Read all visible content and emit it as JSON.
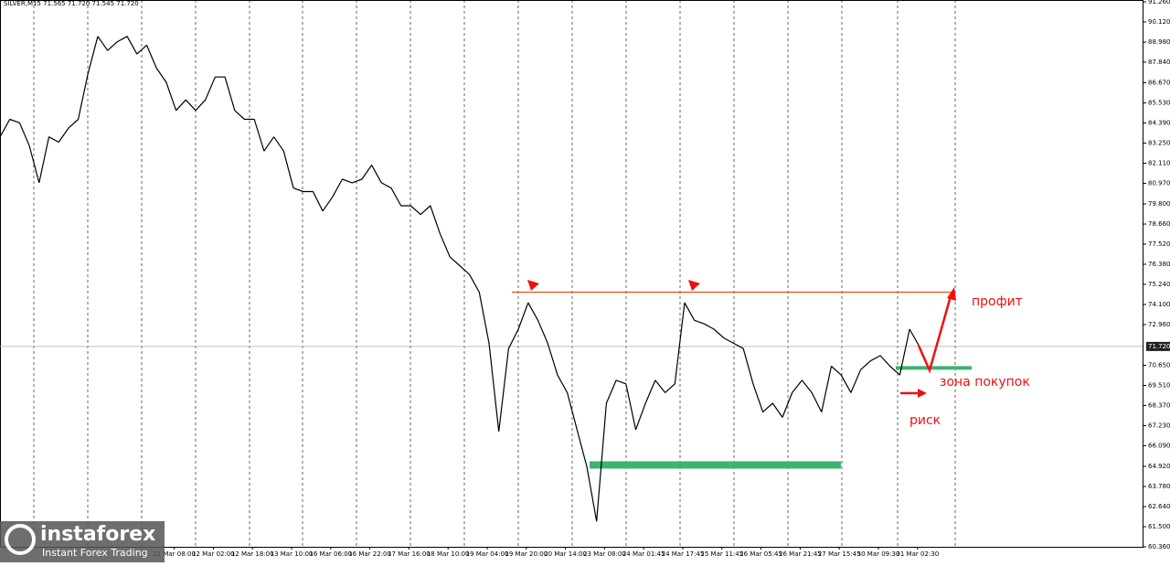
{
  "header": "SILVER,M15 71.565 71.720 71.545 71.720",
  "chart_data": {
    "type": "line",
    "color": "#000000",
    "categories": [
      null,
      null,
      null,
      null,
      null,
      null,
      null,
      null,
      null,
      null,
      null,
      null,
      null,
      null,
      null,
      null,
      null,
      null,
      "11 Mar 08:00",
      null,
      null,
      null,
      "12 Mar 02:00",
      null,
      null,
      null,
      "12 Mar 18:00",
      null,
      null,
      null,
      "13 Mar 10:00",
      null,
      null,
      null,
      "16 Mar 06:00",
      null,
      null,
      null,
      "16 Mar 22:00",
      null,
      null,
      null,
      "17 Mar 16:00",
      null,
      null,
      null,
      "18 Mar 10:00",
      null,
      null,
      null,
      "19 Mar 04:00",
      null,
      null,
      null,
      "19 Mar 20:00",
      null,
      null,
      null,
      "20 Mar 14:00",
      null,
      null,
      null,
      "23 Mar 08:00",
      null,
      null,
      null,
      "24 Mar 01:45",
      null,
      null,
      null,
      "24 Mar 17:45",
      null,
      null,
      null,
      "25 Mar 11:45",
      null,
      null,
      null,
      "26 Mar 05:45",
      null,
      null,
      null,
      "26 Mar 21:45",
      null,
      null,
      null,
      "27 Mar 15:45",
      null,
      null,
      null,
      "30 Mar 09:30",
      null,
      null,
      null,
      "31 Mar 02:30"
    ],
    "values": [
      83.6,
      84.6,
      84.4,
      83.1,
      81.0,
      83.6,
      83.3,
      84.1,
      84.6,
      87.2,
      89.3,
      88.5,
      89.0,
      89.3,
      88.3,
      88.8,
      87.5,
      86.7,
      85.1,
      85.7,
      85.1,
      85.7,
      87.0,
      87.0,
      85.1,
      84.6,
      84.6,
      82.8,
      83.6,
      82.8,
      80.7,
      80.5,
      80.5,
      79.4,
      80.2,
      81.2,
      81.0,
      81.2,
      82.0,
      81.0,
      80.7,
      79.7,
      79.7,
      79.2,
      79.7,
      78.1,
      76.8,
      76.3,
      75.8,
      74.8,
      71.9,
      66.9,
      71.6,
      72.7,
      74.2,
      73.2,
      71.9,
      70.1,
      69.1,
      67.0,
      64.9,
      61.8,
      68.5,
      69.8,
      69.6,
      67.0,
      68.5,
      69.8,
      69.1,
      69.6,
      74.2,
      73.2,
      73.0,
      72.7,
      72.2,
      71.9,
      71.6,
      69.6,
      68.0,
      68.5,
      67.7,
      69.1,
      69.8,
      69.1,
      68.0,
      70.6,
      70.1,
      69.1,
      70.4,
      70.9,
      71.2,
      70.6,
      70.1,
      72.7,
      71.72
    ],
    "ylim": [
      60.36,
      91.26
    ],
    "yticks": [
      {
        "value": 91.26,
        "label": "91.260"
      },
      {
        "value": 90.12,
        "label": "90.120"
      },
      {
        "value": 88.98,
        "label": "88.980"
      },
      {
        "value": 87.84,
        "label": "87.840"
      },
      {
        "value": 86.67,
        "label": "86.670"
      },
      {
        "value": 85.53,
        "label": "85.530"
      },
      {
        "value": 84.39,
        "label": "84.390"
      },
      {
        "value": 83.25,
        "label": "83.250"
      },
      {
        "value": 82.11,
        "label": "82.110"
      },
      {
        "value": 80.97,
        "label": "80.970"
      },
      {
        "value": 79.8,
        "label": "79.800"
      },
      {
        "value": 78.66,
        "label": "78.660"
      },
      {
        "value": 77.52,
        "label": "77.520"
      },
      {
        "value": 76.38,
        "label": "76.380"
      },
      {
        "value": 75.24,
        "label": "75.240"
      },
      {
        "value": 74.1,
        "label": "74.100"
      },
      {
        "value": 72.96,
        "label": "72.960"
      },
      {
        "value": 70.65,
        "label": "70.650"
      },
      {
        "value": 69.51,
        "label": "69.510"
      },
      {
        "value": 68.37,
        "label": "68.370"
      },
      {
        "value": 67.23,
        "label": "67.230"
      },
      {
        "value": 66.09,
        "label": "66.090"
      },
      {
        "value": 64.92,
        "label": "64.920"
      },
      {
        "value": 63.78,
        "label": "63.780"
      },
      {
        "value": 62.64,
        "label": "62.640"
      },
      {
        "value": 61.5,
        "label": "61.500"
      },
      {
        "value": 60.36,
        "label": "60.360"
      }
    ],
    "current": {
      "value": 71.72,
      "label": "71.720"
    },
    "levels": [
      {
        "value": 74.8,
        "color": "#e8501a"
      },
      {
        "value": 65.0,
        "color": "#3cb371"
      },
      {
        "value": 70.5,
        "color": "#3cb371"
      }
    ],
    "annotations": [
      "профит",
      "зона покупок",
      "риск"
    ]
  },
  "logo": {
    "name": "instaforex",
    "tagline": "Instant Forex Trading"
  }
}
